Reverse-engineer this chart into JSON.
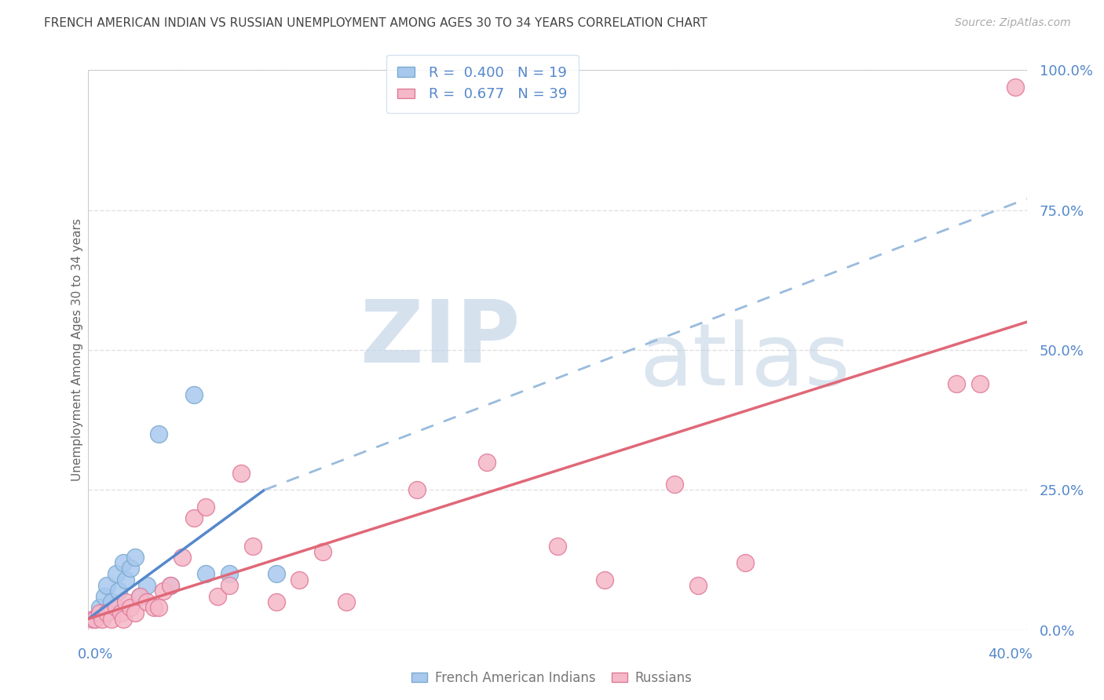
{
  "title": "FRENCH AMERICAN INDIAN VS RUSSIAN UNEMPLOYMENT AMONG AGES 30 TO 34 YEARS CORRELATION CHART",
  "source": "Source: ZipAtlas.com",
  "ylabel": "Unemployment Among Ages 30 to 34 years",
  "ytick_values": [
    0,
    25,
    50,
    75,
    100
  ],
  "xlim": [
    0,
    40
  ],
  "ylim": [
    0,
    100
  ],
  "blue_R": 0.4,
  "blue_N": 19,
  "pink_R": 0.677,
  "pink_N": 39,
  "blue_color": "#a8c8ee",
  "blue_edge_color": "#7aaad0",
  "pink_color": "#f5b8c8",
  "pink_edge_color": "#e07898",
  "blue_line_color": "#5588cc",
  "pink_line_color": "#e06878",
  "blue_dash_color": "#99bbdd",
  "title_color": "#444444",
  "axis_label_color": "#5588cc",
  "grid_color": "#dddddd",
  "watermark_zip_color": "#c5d5e8",
  "watermark_atlas_color": "#b8cce0",
  "blue_scatter_x": [
    0.3,
    0.5,
    0.7,
    0.8,
    1.0,
    1.2,
    1.3,
    1.5,
    1.6,
    1.8,
    2.0,
    2.2,
    2.5,
    3.0,
    3.5,
    4.5,
    5.0,
    6.0,
    8.0
  ],
  "blue_scatter_y": [
    2,
    4,
    6,
    8,
    5,
    10,
    7,
    12,
    9,
    11,
    13,
    6,
    8,
    35,
    8,
    42,
    10,
    10,
    10
  ],
  "pink_scatter_x": [
    0.2,
    0.3,
    0.5,
    0.6,
    0.8,
    1.0,
    1.2,
    1.4,
    1.5,
    1.6,
    1.8,
    2.0,
    2.2,
    2.5,
    2.8,
    3.0,
    3.2,
    3.5,
    4.0,
    4.5,
    5.0,
    5.5,
    6.0,
    6.5,
    7.0,
    8.0,
    9.0,
    10.0,
    11.0,
    14.0,
    17.0,
    20.0,
    22.0,
    25.0,
    26.0,
    28.0,
    37.0,
    38.0,
    39.5
  ],
  "pink_scatter_y": [
    2,
    2,
    3,
    2,
    3,
    2,
    4,
    3,
    2,
    5,
    4,
    3,
    6,
    5,
    4,
    4,
    7,
    8,
    13,
    20,
    22,
    6,
    8,
    28,
    15,
    5,
    9,
    14,
    5,
    25,
    30,
    15,
    9,
    26,
    8,
    12,
    44,
    44,
    97
  ],
  "blue_line_x0": 0,
  "blue_line_y0": 2,
  "blue_line_x1": 7.5,
  "blue_line_y1": 25,
  "blue_dash_x0": 7.5,
  "blue_dash_y0": 25,
  "blue_dash_x1": 40,
  "blue_dash_y1": 77,
  "pink_line_x0": 0,
  "pink_line_y0": 2,
  "pink_line_x1": 40,
  "pink_line_y1": 55
}
